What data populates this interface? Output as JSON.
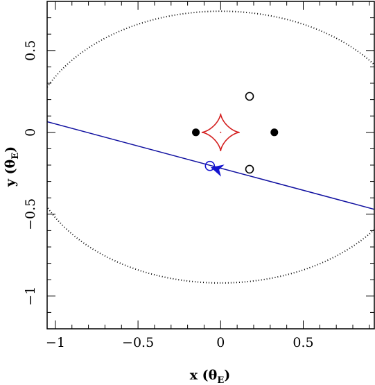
{
  "chart_data": {
    "type": "scatter",
    "title": "",
    "xlabel": "x (θ",
    "xlabel_sub": "E",
    "xlabel_close": ")",
    "ylabel": "y (θ",
    "ylabel_sub": "E",
    "ylabel_close": ")",
    "xlim": [
      -1.05,
      0.93
    ],
    "ylim": [
      -1.2,
      0.8
    ],
    "x_ticks": [
      {
        "value": -1,
        "label": "−1"
      },
      {
        "value": -0.5,
        "label": "−0.5"
      },
      {
        "value": 0,
        "label": "0"
      },
      {
        "value": 0.5,
        "label": "0.5"
      }
    ],
    "y_ticks": [
      {
        "value": 0.5,
        "label": "0.5"
      },
      {
        "value": 0,
        "label": "0"
      },
      {
        "value": -0.5,
        "label": "−0.5"
      },
      {
        "value": -1,
        "label": "−1"
      }
    ],
    "grid": false,
    "critical_curve": {
      "center": [
        0,
        -0.09
      ],
      "rx": 1.17,
      "ry": 0.83,
      "color": "#000000",
      "style": "dotted"
    },
    "caustic": {
      "center": [
        0,
        0
      ],
      "half_width": 0.115,
      "half_height": 0.115,
      "color": "#d42020"
    },
    "lenses": [
      {
        "x": -0.15,
        "y": 0.0
      },
      {
        "x": 0.325,
        "y": 0.0
      }
    ],
    "images": [
      {
        "x": 0.175,
        "y": 0.22
      },
      {
        "x": 0.175,
        "y": -0.225
      }
    ],
    "source_trajectory": {
      "x": [
        -1.05,
        0.93
      ],
      "y": [
        0.065,
        -0.47
      ],
      "color": "#1010a0"
    },
    "source": {
      "x": -0.065,
      "y": -0.205,
      "color": "#1515d0"
    },
    "arrow": {
      "x": -0.02,
      "y": -0.225,
      "color": "#1515d0"
    }
  }
}
